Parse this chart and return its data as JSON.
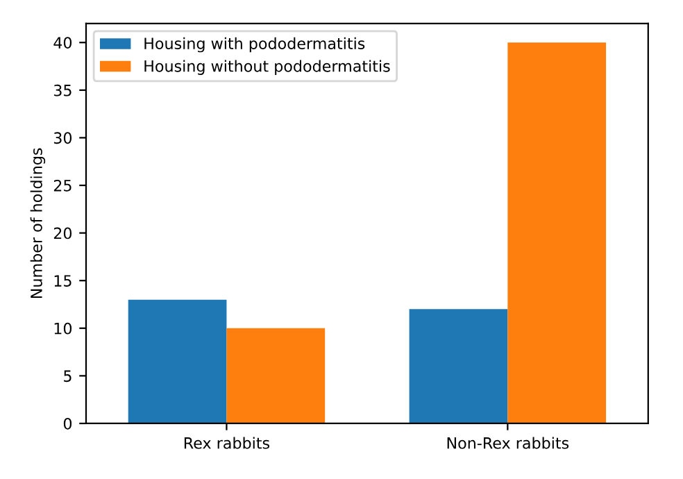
{
  "chart_data": {
    "type": "bar",
    "ylabel": "Number of holdings",
    "categories": [
      "Rex rabbits",
      "Non-Rex rabbits"
    ],
    "series": [
      {
        "name": "Housing with pododermatitis",
        "color": "#1f77b4",
        "values": [
          13,
          12
        ]
      },
      {
        "name": "Housing without pododermatitis",
        "color": "#ff7f0e",
        "values": [
          10,
          40
        ]
      }
    ],
    "ylim": [
      0,
      42
    ],
    "yticks": [
      0,
      5,
      10,
      15,
      20,
      25,
      30,
      35,
      40
    ],
    "grid": false,
    "legend": "top left"
  }
}
